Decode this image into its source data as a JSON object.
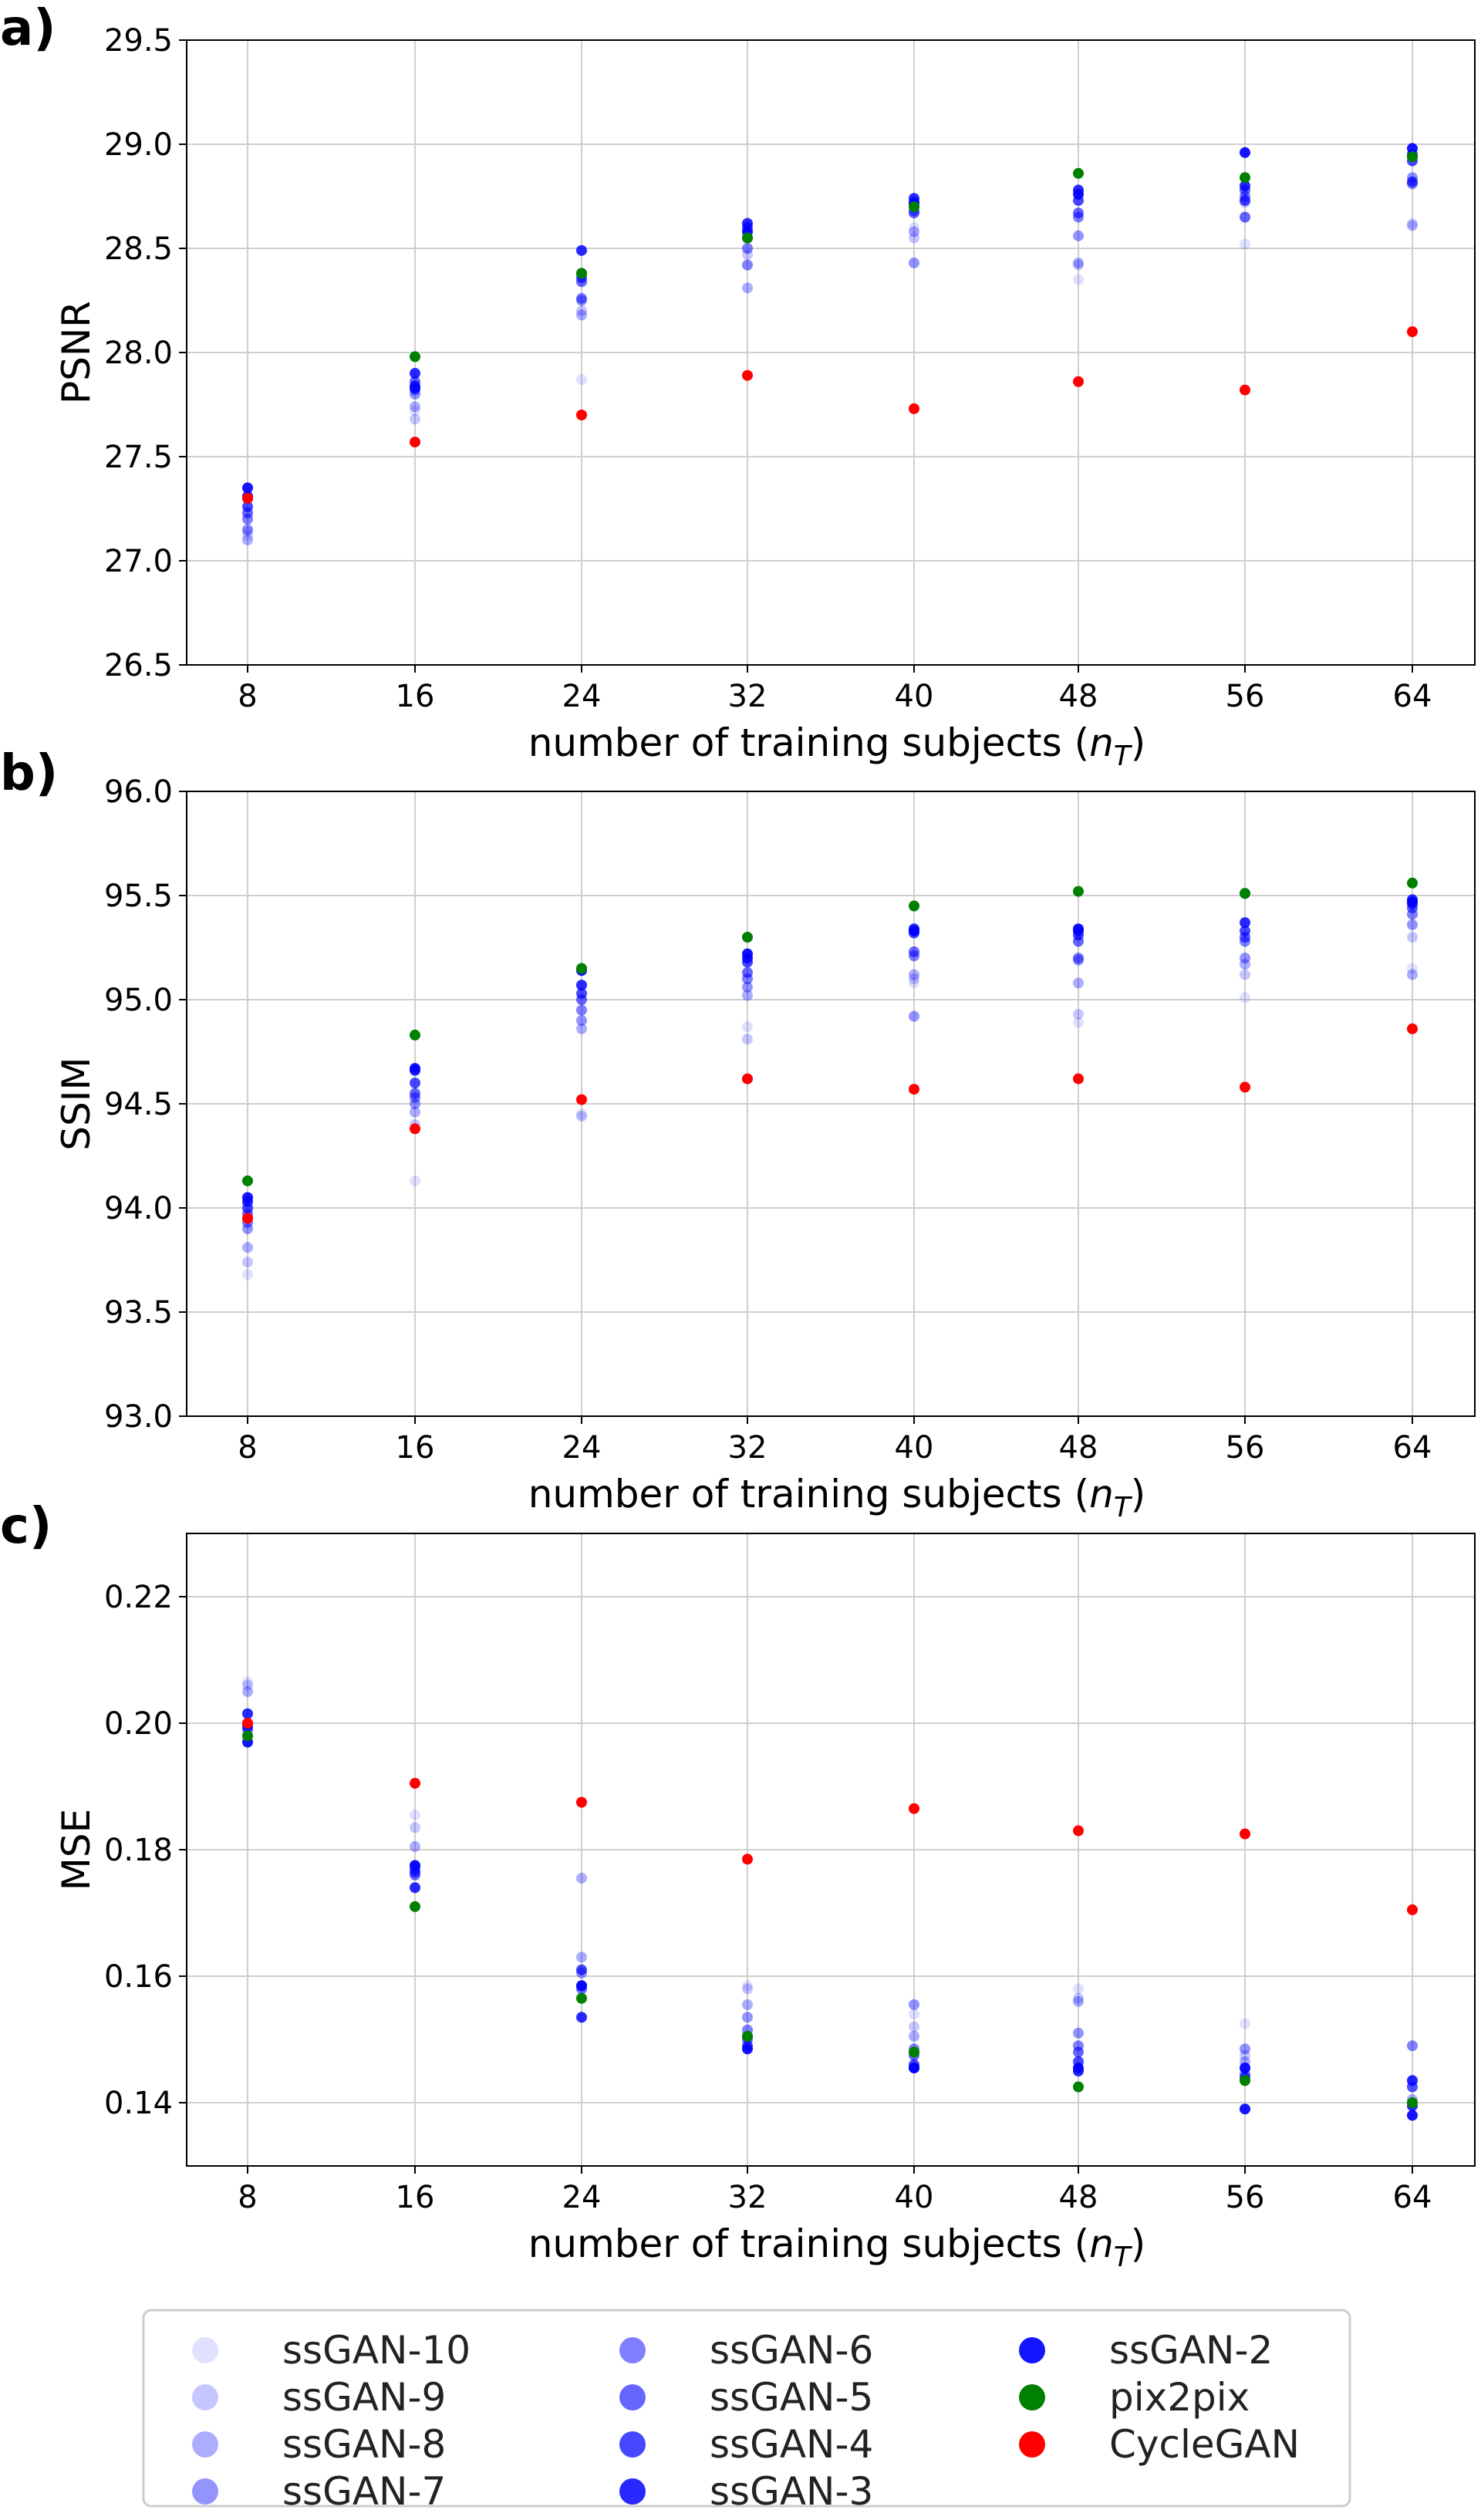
{
  "series_styles": [
    {
      "name": "ssGAN-10",
      "color": "#0000ff",
      "opacity": 0.12
    },
    {
      "name": "ssGAN-9",
      "color": "#0000ff",
      "opacity": 0.22
    },
    {
      "name": "ssGAN-8",
      "color": "#0000ff",
      "opacity": 0.32
    },
    {
      "name": "ssGAN-7",
      "color": "#0000ff",
      "opacity": 0.42
    },
    {
      "name": "ssGAN-6",
      "color": "#0000ff",
      "opacity": 0.5
    },
    {
      "name": "ssGAN-5",
      "color": "#0000ff",
      "opacity": 0.6
    },
    {
      "name": "ssGAN-4",
      "color": "#0000ff",
      "opacity": 0.72
    },
    {
      "name": "ssGAN-3",
      "color": "#0000ff",
      "opacity": 0.84
    },
    {
      "name": "ssGAN-2",
      "color": "#0000ff",
      "opacity": 0.92
    },
    {
      "name": "pix2pix",
      "color": "#008000",
      "opacity": 1
    },
    {
      "name": "CycleGAN",
      "color": "#ff0000",
      "opacity": 1
    }
  ],
  "legend": {
    "entries": [
      "ssGAN-10",
      "ssGAN-9",
      "ssGAN-8",
      "ssGAN-7",
      "ssGAN-6",
      "ssGAN-5",
      "ssGAN-4",
      "ssGAN-3",
      "ssGAN-2",
      "pix2pix",
      "CycleGAN"
    ],
    "location": "bottom-center",
    "columns": 3
  },
  "chart_data": [
    {
      "type": "scatter",
      "panel_label": "a)",
      "ylabel": "PSNR",
      "xlabel": "number of training subjects (",
      "xlabel_math_base": "n",
      "xlabel_math_sub": "T",
      "xlabel_close": ")",
      "categories": [
        "8",
        "16",
        "24",
        "32",
        "40",
        "48",
        "56",
        "64"
      ],
      "ylim": [
        26.5,
        29.5
      ],
      "yticks": [
        26.5,
        27.0,
        27.5,
        28.0,
        28.5,
        29.0,
        29.5
      ],
      "ytick_labels": [
        "26.5",
        "27.0",
        "27.5",
        "28.0",
        "28.5",
        "29.0",
        "29.5"
      ],
      "grid": true,
      "series": [
        {
          "name": "ssGAN-10",
          "values": [
            27.12,
            27.72,
            27.87,
            28.42,
            28.6,
            28.35,
            28.52,
            28.62
          ]
        },
        {
          "name": "ssGAN-9",
          "values": [
            27.14,
            27.68,
            28.2,
            28.47,
            28.55,
            28.42,
            28.72,
            28.82
          ]
        },
        {
          "name": "ssGAN-8",
          "values": [
            27.1,
            27.74,
            28.18,
            28.31,
            28.58,
            28.43,
            28.65,
            28.61
          ]
        },
        {
          "name": "ssGAN-7",
          "values": [
            27.15,
            27.8,
            28.25,
            28.42,
            28.43,
            28.56,
            28.65,
            28.84
          ]
        },
        {
          "name": "ssGAN-6",
          "values": [
            27.2,
            27.82,
            28.26,
            28.5,
            28.68,
            28.65,
            28.75,
            28.81
          ]
        },
        {
          "name": "ssGAN-5",
          "values": [
            27.23,
            27.86,
            28.34,
            28.55,
            28.67,
            28.67,
            28.78,
            28.82
          ]
        },
        {
          "name": "ssGAN-4",
          "values": [
            27.26,
            27.84,
            28.36,
            28.6,
            28.71,
            28.73,
            28.73,
            28.92
          ]
        },
        {
          "name": "ssGAN-3",
          "values": [
            27.31,
            27.9,
            28.49,
            28.62,
            28.74,
            28.78,
            28.8,
            28.95
          ]
        },
        {
          "name": "ssGAN-2",
          "values": [
            27.35,
            27.83,
            28.38,
            28.58,
            28.72,
            28.76,
            28.96,
            28.98
          ]
        },
        {
          "name": "pix2pix",
          "values": [
            27.3,
            27.98,
            28.38,
            28.55,
            28.7,
            28.86,
            28.84,
            28.94
          ]
        },
        {
          "name": "CycleGAN",
          "values": [
            27.3,
            27.57,
            27.7,
            27.89,
            27.73,
            27.86,
            27.82,
            28.1
          ]
        }
      ]
    },
    {
      "type": "scatter",
      "panel_label": "b)",
      "ylabel": "SSIM",
      "xlabel": "number of training subjects (",
      "xlabel_math_base": "n",
      "xlabel_math_sub": "T",
      "xlabel_close": ")",
      "categories": [
        "8",
        "16",
        "24",
        "32",
        "40",
        "48",
        "56",
        "64"
      ],
      "ylim": [
        93.0,
        96.0
      ],
      "yticks": [
        93.0,
        93.5,
        94.0,
        94.5,
        95.0,
        95.5,
        96.0
      ],
      "ytick_labels": [
        "93.0",
        "93.5",
        "94.0",
        "94.5",
        "95.0",
        "95.5",
        "96.0"
      ],
      "grid": true,
      "series": [
        {
          "name": "ssGAN-10",
          "values": [
            93.68,
            94.13,
            94.45,
            94.87,
            95.08,
            94.89,
            95.01,
            95.15
          ]
        },
        {
          "name": "ssGAN-9",
          "values": [
            93.74,
            94.4,
            94.44,
            94.81,
            95.1,
            94.93,
            95.12,
            95.3
          ]
        },
        {
          "name": "ssGAN-8",
          "values": [
            93.81,
            94.46,
            94.86,
            95.02,
            95.12,
            95.08,
            95.17,
            95.12
          ]
        },
        {
          "name": "ssGAN-7",
          "values": [
            93.9,
            94.5,
            94.9,
            95.06,
            94.92,
            95.19,
            95.2,
            95.36
          ]
        },
        {
          "name": "ssGAN-6",
          "values": [
            93.93,
            94.53,
            94.95,
            95.1,
            95.21,
            95.2,
            95.28,
            95.41
          ]
        },
        {
          "name": "ssGAN-5",
          "values": [
            93.97,
            94.55,
            95.0,
            95.13,
            95.23,
            95.28,
            95.3,
            95.44
          ]
        },
        {
          "name": "ssGAN-4",
          "values": [
            94.0,
            94.6,
            95.03,
            95.18,
            95.32,
            95.31,
            95.33,
            95.46
          ]
        },
        {
          "name": "ssGAN-3",
          "values": [
            94.03,
            94.66,
            95.07,
            95.2,
            95.34,
            95.33,
            95.37,
            95.48
          ]
        },
        {
          "name": "ssGAN-2",
          "values": [
            94.05,
            94.67,
            95.14,
            95.22,
            95.33,
            95.34,
            95.51,
            95.47
          ]
        },
        {
          "name": "pix2pix",
          "values": [
            94.13,
            94.83,
            95.15,
            95.3,
            95.45,
            95.52,
            95.51,
            95.56
          ]
        },
        {
          "name": "CycleGAN",
          "values": [
            93.95,
            94.38,
            94.52,
            94.62,
            94.57,
            94.62,
            94.58,
            94.86
          ]
        }
      ]
    },
    {
      "type": "scatter",
      "panel_label": "c)",
      "ylabel": "MSE",
      "xlabel": "number of training subjects (",
      "xlabel_math_base": "n",
      "xlabel_math_sub": "T",
      "xlabel_close": ")",
      "categories": [
        "8",
        "16",
        "24",
        "32",
        "40",
        "48",
        "56",
        "64"
      ],
      "ylim": [
        0.13,
        0.23
      ],
      "yticks": [
        0.14,
        0.16,
        0.18,
        0.2,
        0.22
      ],
      "ytick_labels": [
        "0.14",
        "0.16",
        "0.18",
        "0.20",
        "0.22"
      ],
      "grid": true,
      "series": [
        {
          "name": "ssGAN-10",
          "values": [
            0.2065,
            0.1855,
            0.1755,
            0.1585,
            0.154,
            0.158,
            0.1525,
            0.149
          ]
        },
        {
          "name": "ssGAN-9",
          "values": [
            0.206,
            0.1835,
            0.1755,
            0.158,
            0.152,
            0.1565,
            0.1475,
            0.1425
          ]
        },
        {
          "name": "ssGAN-8",
          "values": [
            0.205,
            0.1805,
            0.163,
            0.1555,
            0.1505,
            0.156,
            0.1465,
            0.1405
          ]
        },
        {
          "name": "ssGAN-7",
          "values": [
            0.2015,
            0.1775,
            0.1605,
            0.1535,
            0.1555,
            0.151,
            0.1485,
            0.149
          ]
        },
        {
          "name": "ssGAN-6",
          "values": [
            0.2,
            0.177,
            0.1585,
            0.1515,
            0.1485,
            0.149,
            0.1445,
            0.1435
          ]
        },
        {
          "name": "ssGAN-5",
          "values": [
            0.199,
            0.176,
            0.158,
            0.15,
            0.1475,
            0.148,
            0.1455,
            0.1425
          ]
        },
        {
          "name": "ssGAN-4",
          "values": [
            0.2015,
            0.1765,
            0.161,
            0.149,
            0.146,
            0.1465,
            0.144,
            0.1435
          ]
        },
        {
          "name": "ssGAN-3",
          "values": [
            0.1995,
            0.174,
            0.1535,
            0.1505,
            0.1455,
            0.145,
            0.1455,
            0.1395
          ]
        },
        {
          "name": "ssGAN-2",
          "values": [
            0.197,
            0.1775,
            0.1585,
            0.1485,
            0.1455,
            0.1455,
            0.139,
            0.138
          ]
        },
        {
          "name": "pix2pix",
          "values": [
            0.198,
            0.171,
            0.1565,
            0.1505,
            0.148,
            0.1425,
            0.1435,
            0.14
          ]
        },
        {
          "name": "CycleGAN",
          "values": [
            0.2,
            0.1905,
            0.1875,
            0.1785,
            0.1865,
            0.183,
            0.1825,
            0.1705
          ]
        }
      ]
    }
  ]
}
